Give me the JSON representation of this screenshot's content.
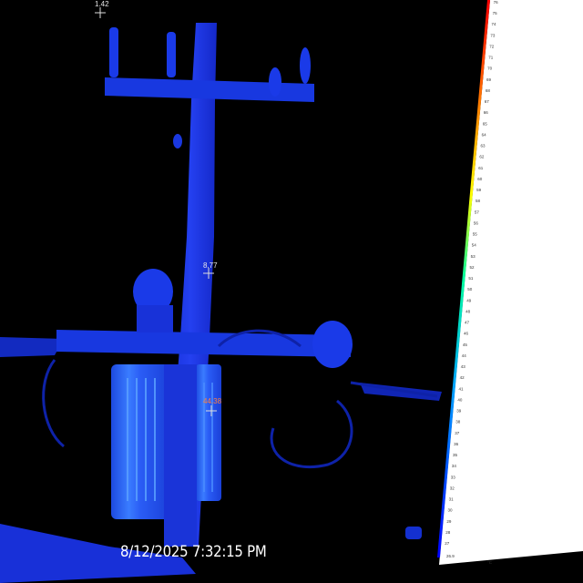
{
  "spots": [
    {
      "label": "1.42",
      "kind": "normal"
    },
    {
      "label": "8.77",
      "kind": "normal"
    },
    {
      "label": "44.38",
      "kind": "hot"
    }
  ],
  "timestamp": "8/12/2025 7:32:15 PM",
  "color_scale": {
    "min_label": "26.9",
    "max_label": "76",
    "unit_label": "°C",
    "tick_labels": [
      "76",
      "75",
      "74",
      "73",
      "72",
      "71",
      "70",
      "69",
      "68",
      "67",
      "66",
      "65",
      "64",
      "63",
      "62",
      "61",
      "60",
      "59",
      "58",
      "57",
      "56",
      "55",
      "54",
      "53",
      "52",
      "51",
      "50",
      "49",
      "48",
      "47",
      "46",
      "45",
      "44",
      "43",
      "42",
      "41",
      "40",
      "39",
      "38",
      "37",
      "36",
      "35",
      "34",
      "33",
      "32",
      "31",
      "30",
      "29",
      "28",
      "27"
    ],
    "palette": [
      "#0000ff",
      "#00a0ff",
      "#00ffa0",
      "#ffff00",
      "#ff6000",
      "#ff0000"
    ]
  },
  "colors": {
    "background": "#000000",
    "object_blue": "#1638e8",
    "hot_blue": "#2f6dff"
  }
}
